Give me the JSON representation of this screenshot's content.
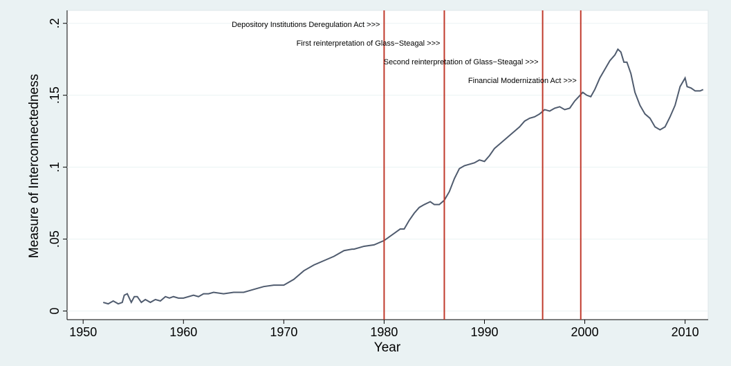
{
  "chart_data": {
    "type": "line",
    "x_label": "Year",
    "y_label": "Measure of Interconnectedness",
    "xlim": [
      1948.4,
      2012.3
    ],
    "ylim": [
      -0.006,
      0.209
    ],
    "xticks": [
      1950,
      1960,
      1970,
      1980,
      1990,
      2000,
      2010
    ],
    "yticks": [
      {
        "value": 0,
        "label": "0"
      },
      {
        "value": 0.05,
        "label": ".05"
      },
      {
        "value": 0.1,
        "label": ".1"
      },
      {
        "value": 0.15,
        "label": ".15"
      },
      {
        "value": 0.2,
        "label": ".2"
      }
    ],
    "grid": true,
    "vlines": [
      {
        "x": 1980,
        "label": "Depository Institutions Deregulation Act >>>"
      },
      {
        "x": 1986,
        "label": "First reinterpretation of Glass−Steagal >>>"
      },
      {
        "x": 1995.8,
        "label": "Second reinterpretation of Glass−Steagal >>>"
      },
      {
        "x": 1999.6,
        "label": "Financial Modernization Act >>>"
      }
    ],
    "vline_color": "#c0392b",
    "series": [
      {
        "color": "#4f5b6e",
        "x": [
          1952.0,
          1952.5,
          1953,
          1953.5,
          1953.9,
          1954.1,
          1954.4,
          1954.8,
          1955.1,
          1955.4,
          1955.8,
          1956.2,
          1956.7,
          1957.2,
          1957.7,
          1958.2,
          1958.6,
          1959,
          1959.5,
          1960,
          1961,
          1961.5,
          1962,
          1962.5,
          1963,
          1964,
          1965,
          1966,
          1967,
          1968,
          1969,
          1970,
          1971,
          1972,
          1973,
          1974,
          1975,
          1976,
          1976.8,
          1977,
          1978,
          1979,
          1980,
          1981,
          1981.6,
          1982,
          1982.5,
          1983,
          1983.5,
          1984,
          1984.6,
          1985,
          1985.5,
          1986,
          1986.5,
          1987,
          1987.5,
          1988,
          1988.5,
          1989,
          1989.5,
          1990,
          1990.5,
          1991,
          1991.5,
          1992,
          1992.5,
          1993,
          1993.5,
          1994,
          1994.5,
          1995,
          1995.5,
          1996,
          1996.5,
          1997,
          1997.5,
          1998,
          1998.5,
          1999,
          1999.8,
          2000.2,
          2000.6,
          2001,
          2001.5,
          2002,
          2002.5,
          2003,
          2003.3,
          2003.6,
          2003.9,
          2004.2,
          2004.6,
          2005,
          2005.5,
          2006,
          2006.5,
          2007,
          2007.5,
          2008,
          2008.5,
          2009,
          2009.5,
          2010,
          2010.2,
          2010.6,
          2011,
          2011.5,
          2011.8
        ],
        "values": [
          0.006,
          0.005,
          0.007,
          0.005,
          0.006,
          0.011,
          0.012,
          0.006,
          0.01,
          0.01,
          0.006,
          0.008,
          0.006,
          0.008,
          0.007,
          0.01,
          0.009,
          0.01,
          0.009,
          0.009,
          0.011,
          0.01,
          0.012,
          0.012,
          0.013,
          0.012,
          0.013,
          0.013,
          0.015,
          0.017,
          0.018,
          0.018,
          0.022,
          0.028,
          0.032,
          0.035,
          0.038,
          0.042,
          0.043,
          0.043,
          0.045,
          0.046,
          0.049,
          0.054,
          0.057,
          0.057,
          0.063,
          0.068,
          0.072,
          0.074,
          0.076,
          0.074,
          0.074,
          0.077,
          0.083,
          0.092,
          0.099,
          0.101,
          0.102,
          0.103,
          0.105,
          0.104,
          0.108,
          0.113,
          0.116,
          0.119,
          0.122,
          0.125,
          0.128,
          0.132,
          0.134,
          0.135,
          0.137,
          0.14,
          0.139,
          0.141,
          0.142,
          0.14,
          0.141,
          0.146,
          0.152,
          0.15,
          0.149,
          0.154,
          0.162,
          0.168,
          0.174,
          0.178,
          0.182,
          0.18,
          0.173,
          0.173,
          0.165,
          0.152,
          0.143,
          0.137,
          0.134,
          0.128,
          0.126,
          0.128,
          0.135,
          0.143,
          0.156,
          0.162,
          0.156,
          0.155,
          0.153,
          0.153,
          0.154
        ]
      }
    ]
  }
}
